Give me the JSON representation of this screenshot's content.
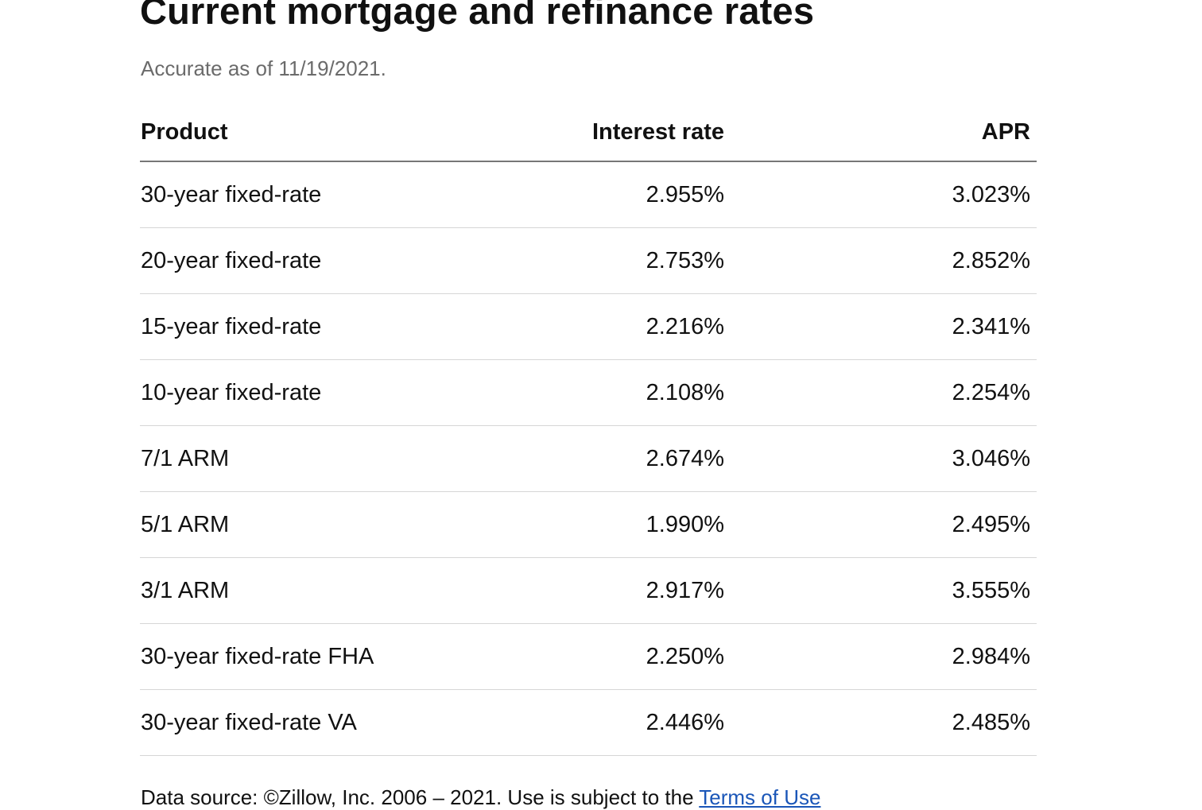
{
  "header": {
    "title": "Current mortgage and refinance rates",
    "accuracy_note": "Accurate as of 11/19/2021."
  },
  "table": {
    "columns": [
      "Product",
      "Interest rate",
      "APR"
    ],
    "rows": [
      {
        "product": "30-year fixed-rate",
        "interest_rate": "2.955%",
        "apr": "3.023%"
      },
      {
        "product": "20-year fixed-rate",
        "interest_rate": "2.753%",
        "apr": "2.852%"
      },
      {
        "product": "15-year fixed-rate",
        "interest_rate": "2.216%",
        "apr": "2.341%"
      },
      {
        "product": "10-year fixed-rate",
        "interest_rate": "2.108%",
        "apr": "2.254%"
      },
      {
        "product": "7/1 ARM",
        "interest_rate": "2.674%",
        "apr": "3.046%"
      },
      {
        "product": "5/1 ARM",
        "interest_rate": "1.990%",
        "apr": "2.495%"
      },
      {
        "product": "3/1 ARM",
        "interest_rate": "2.917%",
        "apr": "3.555%"
      },
      {
        "product": "30-year fixed-rate FHA",
        "interest_rate": "2.250%",
        "apr": "2.984%"
      },
      {
        "product": "30-year fixed-rate VA",
        "interest_rate": "2.446%",
        "apr": "2.485%"
      }
    ]
  },
  "footer": {
    "data_source_text": "Data source: ©Zillow, Inc. 2006 – 2021. Use is subject to the ",
    "terms_link_label": "Terms of Use"
  },
  "colors": {
    "text": "#111111",
    "muted_text": "#6b6b6b",
    "link": "#1a56b8",
    "header_rule": "#777777",
    "row_rule": "#d6d6d6"
  }
}
